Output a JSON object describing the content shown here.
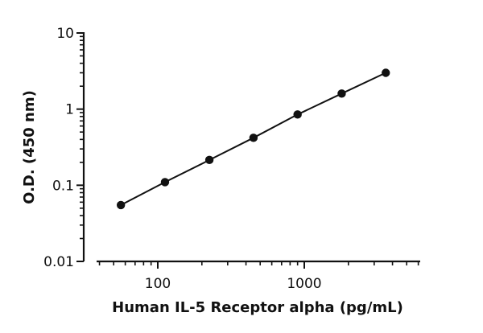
{
  "chart_data": {
    "type": "line",
    "title": "",
    "xlabel": "Human IL-5 Receptor alpha (pg/mL)",
    "ylabel": "O.D. (450 nm)",
    "xscale": "log",
    "yscale": "log",
    "xlim": [
      30,
      6000
    ],
    "ylim": [
      0.01,
      10
    ],
    "x_ticks": [
      {
        "value": 100,
        "label": "100"
      },
      {
        "value": 1000,
        "label": "1000"
      }
    ],
    "y_ticks": [
      {
        "value": 0.01,
        "label": "0.01"
      },
      {
        "value": 0.1,
        "label": "0.1"
      },
      {
        "value": 1,
        "label": "1"
      },
      {
        "value": 10,
        "label": "10"
      }
    ],
    "grid": false,
    "marker_color": "#111111",
    "series": [
      {
        "x": [
          56,
          112,
          225,
          450,
          900,
          1800,
          3600
        ],
        "y": [
          0.055,
          0.11,
          0.215,
          0.42,
          0.85,
          1.6,
          3.0
        ]
      }
    ]
  }
}
